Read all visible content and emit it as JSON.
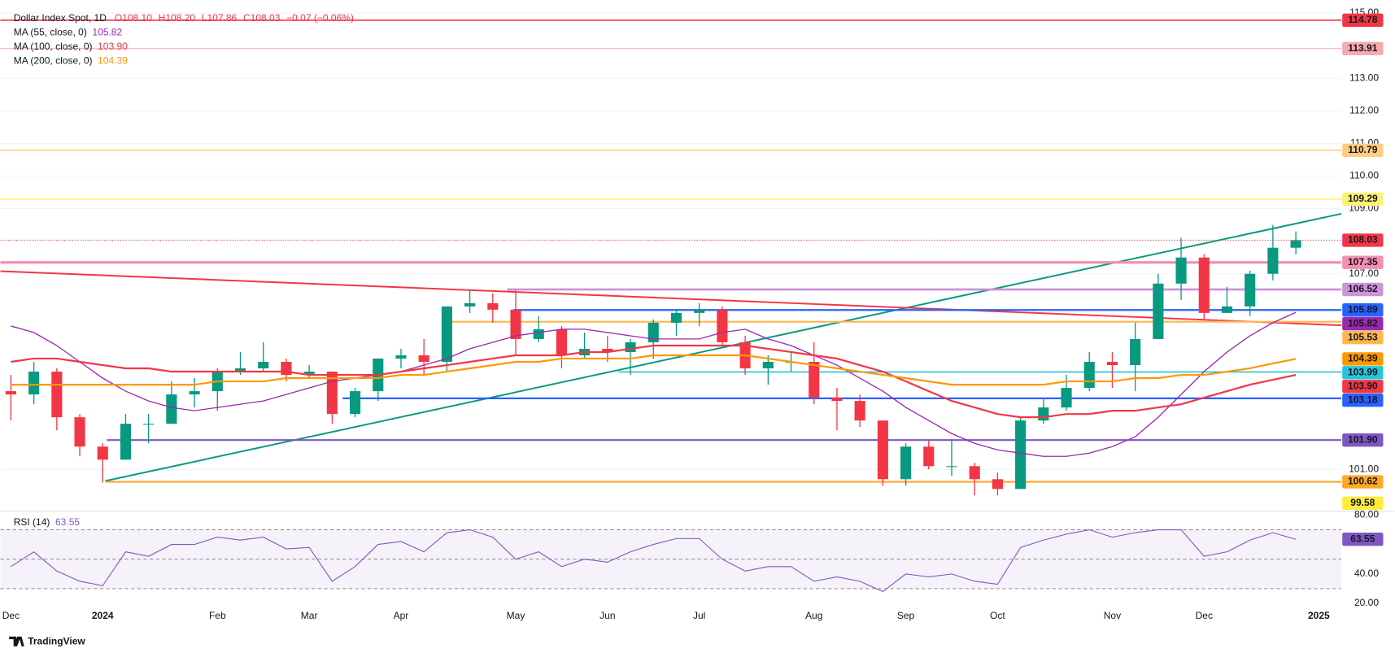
{
  "chart_data": [
    {
      "type": "candlestick",
      "title": "Dollar Index Spot, 1D",
      "header_values": [
        "O108.10",
        "H108.20",
        "L107.86",
        "C108.03",
        "−0.07 (−0.06%)"
      ],
      "categories": [
        "Dec",
        null,
        null,
        null,
        "2024",
        null,
        null,
        null,
        null,
        "Feb",
        null,
        null,
        null,
        "Mar",
        null,
        null,
        null,
        "Apr",
        null,
        null,
        null,
        null,
        "May",
        null,
        null,
        null,
        "Jun",
        null,
        null,
        null,
        "Jul",
        null,
        null,
        null,
        null,
        "Aug",
        null,
        null,
        null,
        "Sep",
        null,
        null,
        null,
        "Oct",
        null,
        null,
        null,
        null,
        "Nov",
        null,
        null,
        null,
        "Dec",
        null,
        null,
        null,
        null,
        "2025"
      ],
      "open": [
        103.4,
        103.3,
        104.0,
        102.6,
        101.7,
        101.3,
        102.4,
        102.4,
        103.3,
        103.4,
        104.0,
        104.1,
        104.3,
        103.9,
        104.0,
        102.7,
        103.4,
        104.4,
        104.5,
        104.3,
        106.0,
        106.1,
        105.9,
        105.0,
        105.3,
        104.5,
        104.7,
        104.6,
        104.9,
        105.5,
        105.8,
        105.9,
        104.9,
        104.1,
        104.3,
        104.3,
        103.2,
        103.1,
        102.5,
        100.7,
        101.7,
        101.1,
        101.1,
        100.7,
        100.4,
        102.5,
        102.9,
        103.5,
        104.3,
        104.2,
        105.0,
        106.7,
        107.5,
        105.8,
        106.0,
        107.0,
        107.8,
        null
      ],
      "high": [
        103.9,
        104.3,
        104.1,
        102.7,
        101.8,
        102.7,
        102.7,
        103.7,
        103.8,
        104.1,
        104.6,
        104.9,
        104.4,
        104.2,
        104.0,
        103.5,
        104.4,
        104.7,
        105.0,
        106.0,
        106.5,
        106.4,
        106.5,
        105.7,
        105.4,
        105.2,
        105.1,
        105.0,
        105.6,
        105.9,
        106.1,
        106.0,
        105.1,
        104.5,
        104.6,
        104.9,
        103.5,
        103.3,
        102.5,
        101.8,
        101.9,
        101.9,
        101.2,
        100.9,
        102.6,
        103.2,
        103.9,
        104.6,
        104.6,
        105.5,
        107.0,
        108.1,
        107.6,
        106.6,
        107.1,
        108.5,
        108.3,
        null
      ],
      "low": [
        102.5,
        103.0,
        102.2,
        101.4,
        100.6,
        101.3,
        101.8,
        102.4,
        102.9,
        102.8,
        103.9,
        104.0,
        103.7,
        103.8,
        102.4,
        102.6,
        103.1,
        104.1,
        103.9,
        104.0,
        105.8,
        105.5,
        104.5,
        104.9,
        104.1,
        104.4,
        104.3,
        103.9,
        104.4,
        105.1,
        105.4,
        104.8,
        103.9,
        103.6,
        104.0,
        103.0,
        102.2,
        102.3,
        100.5,
        100.5,
        101.0,
        100.8,
        100.2,
        100.2,
        100.4,
        102.4,
        102.8,
        103.4,
        103.5,
        103.4,
        105.0,
        106.2,
        105.6,
        105.8,
        105.7,
        106.8,
        107.6,
        null
      ],
      "close": [
        103.3,
        104.0,
        102.6,
        101.7,
        101.3,
        102.4,
        102.4,
        103.3,
        103.4,
        104.0,
        104.1,
        104.3,
        103.9,
        104.0,
        102.7,
        103.4,
        104.4,
        104.5,
        104.3,
        106.0,
        106.1,
        105.9,
        105.0,
        105.3,
        104.5,
        104.7,
        104.6,
        104.9,
        105.5,
        105.8,
        105.9,
        104.9,
        104.1,
        104.3,
        104.3,
        103.2,
        103.1,
        102.5,
        100.7,
        101.7,
        101.1,
        101.1,
        100.7,
        100.4,
        102.5,
        102.9,
        103.5,
        104.3,
        104.2,
        105.0,
        106.7,
        107.5,
        105.8,
        106.0,
        107.0,
        107.8,
        108.03,
        null
      ],
      "up_color": "#089981",
      "down_color": "#f23645",
      "series": [
        {
          "name": "MA (55, close, 0)",
          "color": "#9c27b0",
          "last_label": "105.82",
          "values": [
            105.4,
            105.2,
            104.8,
            104.3,
            103.8,
            103.4,
            103.1,
            102.9,
            102.8,
            102.9,
            103.0,
            103.1,
            103.3,
            103.5,
            103.7,
            103.8,
            103.9,
            104.0,
            104.2,
            104.4,
            104.7,
            104.9,
            105.1,
            105.2,
            105.3,
            105.3,
            105.2,
            105.1,
            105.0,
            105.0,
            105.0,
            105.2,
            105.3,
            105.0,
            104.8,
            104.5,
            104.2,
            103.8,
            103.4,
            102.9,
            102.5,
            102.1,
            101.8,
            101.6,
            101.5,
            101.4,
            101.4,
            101.5,
            101.7,
            102.0,
            102.6,
            103.3,
            104.0,
            104.6,
            105.1,
            105.5,
            105.82,
            null
          ]
        },
        {
          "name": "MA (100, close, 0)",
          "color": "#f23645",
          "last_label": "103.90",
          "values": [
            104.3,
            104.4,
            104.4,
            104.3,
            104.2,
            104.1,
            104.1,
            104.0,
            104.0,
            104.0,
            104.0,
            104.0,
            104.0,
            103.9,
            103.9,
            103.9,
            103.9,
            104.0,
            104.1,
            104.2,
            104.3,
            104.4,
            104.5,
            104.5,
            104.5,
            104.6,
            104.6,
            104.7,
            104.8,
            104.8,
            104.8,
            104.8,
            104.8,
            104.7,
            104.6,
            104.5,
            104.4,
            104.2,
            104.0,
            103.7,
            103.4,
            103.1,
            102.9,
            102.7,
            102.6,
            102.6,
            102.7,
            102.7,
            102.8,
            102.8,
            102.9,
            103.0,
            103.2,
            103.4,
            103.6,
            103.75,
            103.9,
            null
          ]
        },
        {
          "name": "MA (200, close, 0)",
          "color": "#ff9800",
          "last_label": "104.39",
          "values": [
            103.6,
            103.6,
            103.6,
            103.6,
            103.6,
            103.6,
            103.6,
            103.6,
            103.6,
            103.7,
            103.7,
            103.7,
            103.8,
            103.8,
            103.8,
            103.8,
            103.8,
            103.9,
            103.9,
            104.0,
            104.1,
            104.2,
            104.3,
            104.3,
            104.4,
            104.4,
            104.4,
            104.4,
            104.5,
            104.5,
            104.5,
            104.5,
            104.5,
            104.4,
            104.3,
            104.2,
            104.1,
            104.0,
            103.9,
            103.8,
            103.7,
            103.6,
            103.6,
            103.6,
            103.6,
            103.6,
            103.7,
            103.7,
            103.7,
            103.8,
            103.8,
            103.9,
            103.9,
            104.0,
            104.1,
            104.25,
            104.39,
            null
          ]
        }
      ],
      "levels": [
        {
          "value": 114.78,
          "label": "114.78",
          "color": "#f23645",
          "text_color": "#ffffff"
        },
        {
          "value": 113.91,
          "label": "113.91",
          "color": "#f7a8b0",
          "text_color": "#131722"
        },
        {
          "value": 110.79,
          "label": "110.79",
          "color": "#ffcc80",
          "text_color": "#131722"
        },
        {
          "value": 109.29,
          "label": "109.29",
          "color": "#fff176",
          "text_color": "#131722"
        },
        {
          "value": 107.35,
          "label": "107.35",
          "color": "#f48fb1",
          "text_color": "#131722"
        },
        {
          "value": 106.52,
          "label": "106.52",
          "color": "#ce93d8",
          "text_color": "#131722"
        },
        {
          "value": 105.89,
          "label": "105.89",
          "color": "#2962ff",
          "text_color": "#ffffff"
        },
        {
          "value": 105.53,
          "label": "105.53",
          "color": "#ffb74d",
          "text_color": "#131722"
        },
        {
          "value": 103.99,
          "label": "103.99",
          "color": "#26c6da",
          "text_color": "#ffffff"
        },
        {
          "value": 103.18,
          "label": "103.18",
          "color": "#2962ff",
          "text_color": "#ffffff"
        },
        {
          "value": 101.9,
          "label": "101.90",
          "color": "#7e57c2",
          "text_color": "#ffffff"
        },
        {
          "value": 100.62,
          "label": "100.62",
          "color": "#ffa726",
          "text_color": "#131722"
        },
        {
          "value": 99.58,
          "label": "99.58",
          "color": "#ffeb3b",
          "text_color": "#131722"
        }
      ],
      "ylim": [
        99.8,
        115.4
      ],
      "yticks": [
        {
          "value": 115,
          "label": "115.00"
        },
        {
          "value": 113,
          "label": "113.00"
        },
        {
          "value": 112,
          "label": "112.00"
        },
        {
          "value": 111,
          "label": "111.00"
        },
        {
          "value": 110,
          "label": "110.00"
        },
        {
          "value": 109,
          "label": "109.00"
        },
        {
          "value": 107,
          "label": "107.00"
        },
        {
          "value": 101,
          "label": "101.00"
        }
      ],
      "grid": true
    },
    {
      "type": "line",
      "series": [
        {
          "name": "RSI (14)",
          "color": "#7e57c2",
          "values": [
            45,
            55,
            42,
            35,
            32,
            55,
            52,
            60,
            60,
            65,
            63,
            65,
            57,
            58,
            35,
            45,
            60,
            62,
            55,
            68,
            70,
            65,
            50,
            55,
            45,
            50,
            48,
            55,
            60,
            64,
            64,
            50,
            42,
            45,
            45,
            35,
            38,
            35,
            28,
            40,
            38,
            40,
            35,
            33,
            58,
            63,
            67,
            70,
            65,
            68,
            70,
            70,
            52,
            55,
            63,
            68,
            63.55,
            null
          ]
        }
      ],
      "levels": [
        70,
        50,
        30
      ],
      "ylim": [
        18,
        82
      ],
      "yticks": [
        {
          "value": 80,
          "label": "80.00"
        },
        {
          "value": 40,
          "label": "40.00"
        },
        {
          "value": 20,
          "label": "20.00"
        }
      ]
    }
  ],
  "footer": {
    "brand": "TradingView"
  }
}
